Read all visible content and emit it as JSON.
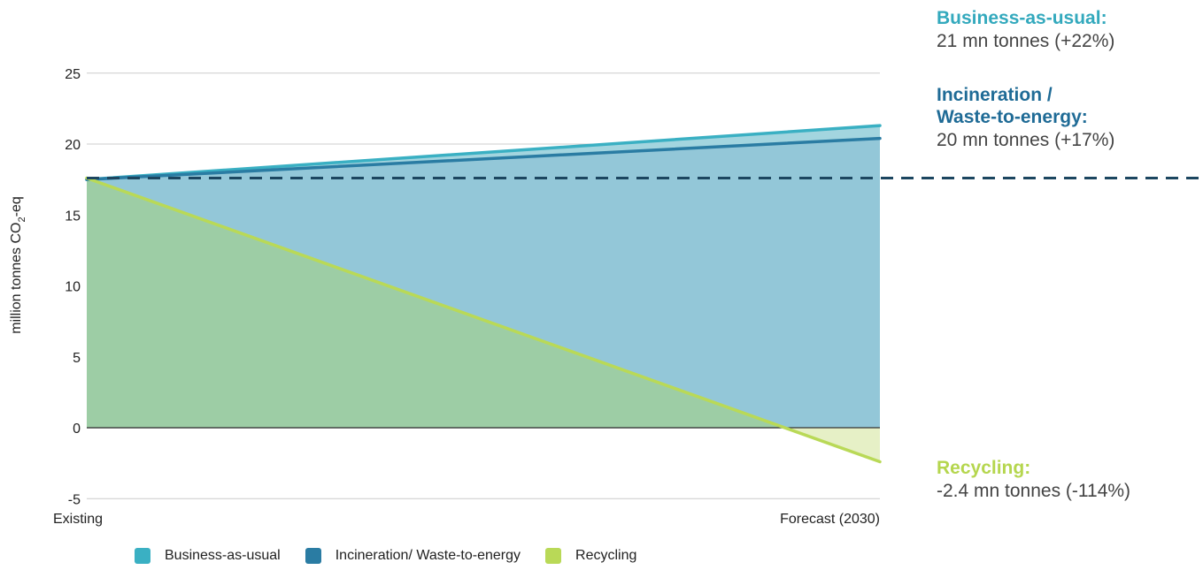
{
  "chart_data": {
    "type": "area",
    "x": [
      "Existing",
      "Forecast (2030)"
    ],
    "ylabel": "million tonnes CO",
    "ylabel_sub": "2",
    "ylabel_suffix": "-eq",
    "ylim": [
      -5,
      25
    ],
    "yticks": [
      -5,
      0,
      5,
      10,
      15,
      20,
      25
    ],
    "grid": true,
    "legend_position": "bottom",
    "baseline_existing": 17.6,
    "series": [
      {
        "name": "Business-as-usual",
        "values": [
          17.5,
          21.3
        ],
        "color": "#3ab0c3",
        "fill": "#a3d5df"
      },
      {
        "name": "Incineration/ Waste-to-energy",
        "values": [
          17.5,
          20.4
        ],
        "color": "#2a7ca3",
        "fill": "#93c7d8"
      },
      {
        "name": "Recycling",
        "values": [
          17.6,
          -2.4
        ],
        "color": "#b9d957",
        "fill": "#9dcda5"
      }
    ]
  },
  "annotations": {
    "bau": {
      "title": "Business-as-usual:",
      "value": "21 mn tonnes (+22%)",
      "color": "#33a9bd"
    },
    "incineration": {
      "title_line1": "Incineration /",
      "title_line2": "Waste-to-energy:",
      "value": "20 mn tonnes (+17%)",
      "color": "#1f6b96"
    },
    "recycling": {
      "title": "Recycling:",
      "value": "-2.4 mn tonnes (-114%)",
      "color": "#b5d64e"
    }
  },
  "legend": [
    {
      "label": "Business-as-usual",
      "color": "#3ab0c3"
    },
    {
      "label": "Incineration/ Waste-to-energy",
      "color": "#2a7ca3"
    },
    {
      "label": "Recycling",
      "color": "#b9d957"
    }
  ],
  "colors": {
    "dashed_line": "#1c4660",
    "grid": "#cccccc"
  }
}
